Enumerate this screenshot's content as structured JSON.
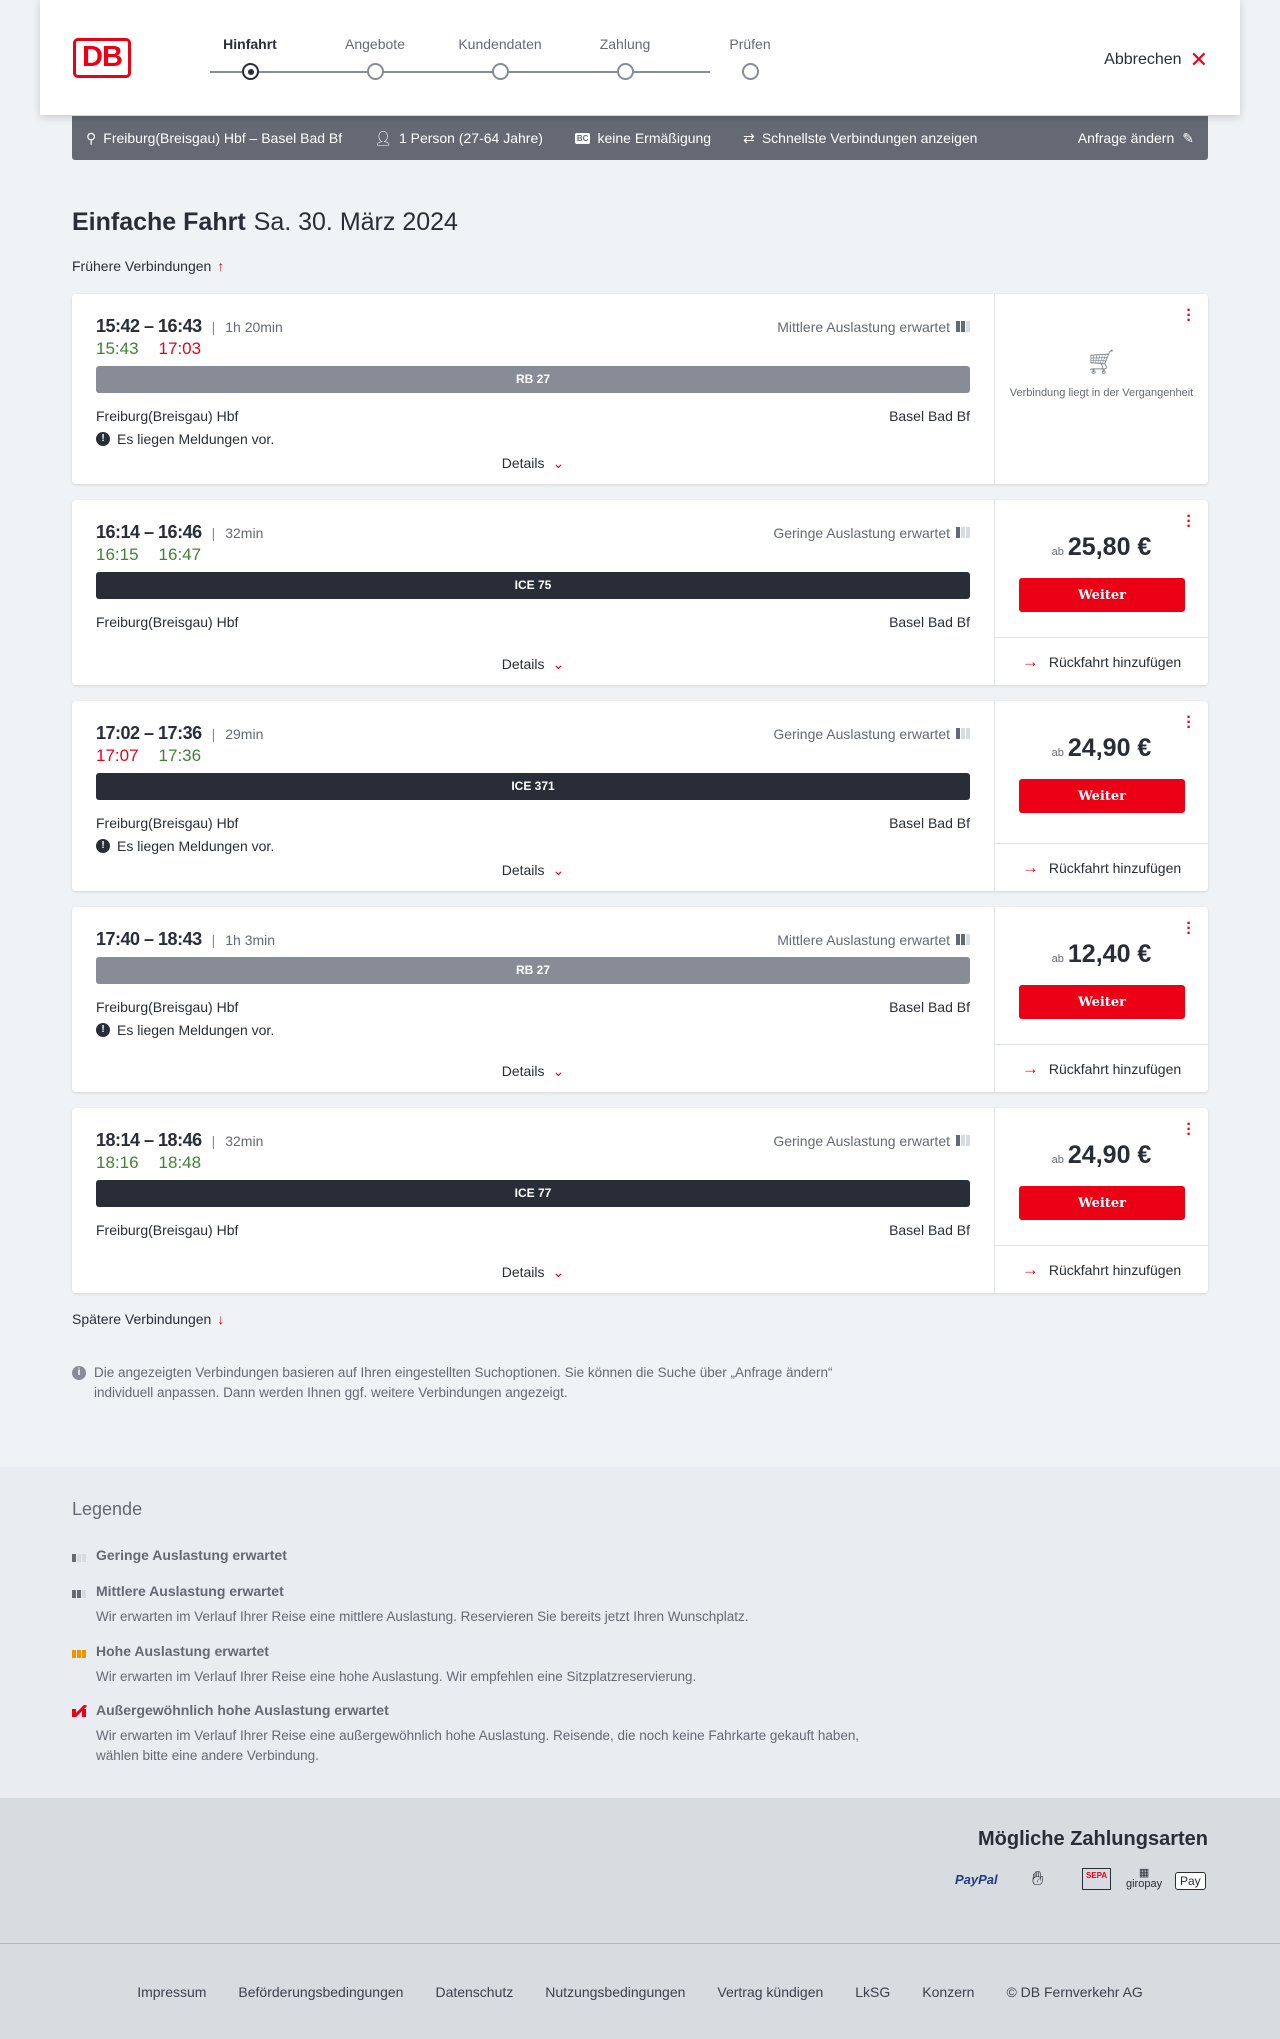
{
  "header": {
    "logo": "DB",
    "steps": [
      "Hinfahrt",
      "Angebote",
      "Kundendaten",
      "Zahlung",
      "Prüfen"
    ],
    "active_step": 0,
    "cancel": "Abbrechen"
  },
  "search": {
    "route": "Freiburg(Breisgau) Hbf – Basel Bad Bf",
    "persons": "1 Person (27-64 Jahre)",
    "bc_badge": "BC",
    "discount": "keine Ermäßigung",
    "fastest": "Schnellste Verbindungen anzeigen",
    "change": "Anfrage ändern"
  },
  "page": {
    "title": "Einfache Fahrt",
    "date": "Sa. 30. März 2024",
    "earlier": "Frühere Verbindungen",
    "later": "Spätere Verbindungen",
    "info": "Die angezeigten Verbindungen basieren auf Ihren eingestellten Suchoptionen. Sie können die Suche über „Anfrage ändern“ individuell anpassen. Dann werden Ihnen ggf. weitere Verbindungen angezeigt."
  },
  "colors": {
    "accent": "#ec0016",
    "on_time": "#408335",
    "train_regional": "#878c96",
    "train_ice": "#282d37"
  },
  "labels": {
    "details": "Details",
    "weiter": "Weiter",
    "return": "Rückfahrt hinzufügen",
    "ab": "ab",
    "past": "Verbindung liegt in der Vergangenheit"
  },
  "connections": [
    {
      "times": "15:42 – 16:43",
      "duration": "1h 20min",
      "rt_dep": "15:43",
      "rt_dep_status": "ok",
      "rt_arr": "17:03",
      "rt_arr_status": "late",
      "load": "Mittlere Auslastung erwartet",
      "load_level": "mid",
      "train": "RB 27",
      "train_type": "regional",
      "from": "Freiburg(Breisgau) Hbf",
      "to": "Basel Bad Bf",
      "message": "Es liegen Meldungen vor.",
      "past": true
    },
    {
      "times": "16:14 – 16:46",
      "duration": "32min",
      "rt_dep": "16:15",
      "rt_dep_status": "ok",
      "rt_arr": "16:47",
      "rt_arr_status": "ok",
      "load": "Geringe Auslastung erwartet",
      "load_level": "low",
      "train": "ICE 75",
      "train_type": "ice",
      "from": "Freiburg(Breisgau) Hbf",
      "to": "Basel Bad Bf",
      "price": "25,80 €"
    },
    {
      "times": "17:02 – 17:36",
      "duration": "29min",
      "rt_dep": "17:07",
      "rt_dep_status": "late",
      "rt_arr": "17:36",
      "rt_arr_status": "ok",
      "load": "Geringe Auslastung erwartet",
      "load_level": "low",
      "train": "ICE 371",
      "train_type": "ice",
      "from": "Freiburg(Breisgau) Hbf",
      "to": "Basel Bad Bf",
      "message": "Es liegen Meldungen vor.",
      "price": "24,90 €"
    },
    {
      "times": "17:40 – 18:43",
      "duration": "1h 3min",
      "load": "Mittlere Auslastung erwartet",
      "load_level": "mid",
      "train": "RB 27",
      "train_type": "regional",
      "from": "Freiburg(Breisgau) Hbf",
      "to": "Basel Bad Bf",
      "message": "Es liegen Meldungen vor.",
      "price": "12,40 €"
    },
    {
      "times": "18:14 – 18:46",
      "duration": "32min",
      "rt_dep": "18:16",
      "rt_dep_status": "ok",
      "rt_arr": "18:48",
      "rt_arr_status": "ok",
      "load": "Geringe Auslastung erwartet",
      "load_level": "low",
      "train": "ICE 77",
      "train_type": "ice",
      "from": "Freiburg(Breisgau) Hbf",
      "to": "Basel Bad Bf",
      "price": "24,90 €"
    }
  ],
  "legend": {
    "title": "Legende",
    "items": [
      {
        "title": "Geringe Auslastung erwartet",
        "text": ""
      },
      {
        "title": "Mittlere Auslastung erwartet",
        "text": "Wir erwarten im Verlauf Ihrer Reise eine mittlere Auslastung. Reservieren Sie bereits jetzt Ihren Wunschplatz."
      },
      {
        "title": "Hohe Auslastung erwartet",
        "text": "Wir erwarten im Verlauf Ihrer Reise eine hohe Auslastung. Wir empfehlen eine Sitzplatzreservierung."
      },
      {
        "title": "Außergewöhnlich hohe Auslastung erwartet",
        "text": "Wir erwarten im Verlauf Ihrer Reise eine außergewöhnlich hohe Auslastung. Reisende, die noch keine Fahrkarte gekauft haben, wählen bitte eine andere Verbindung."
      }
    ]
  },
  "payment": {
    "title": "Mögliche Zahlungsarten",
    "methods": [
      "PayPal",
      "Kreditkarte",
      "SEPA",
      "giropay",
      "Pay"
    ]
  },
  "footer": {
    "links": [
      "Impressum",
      "Beförderungsbedingungen",
      "Datenschutz",
      "Nutzungsbedingungen",
      "Vertrag kündigen",
      "LkSG",
      "Konzern",
      "© DB Fernverkehr AG"
    ]
  }
}
